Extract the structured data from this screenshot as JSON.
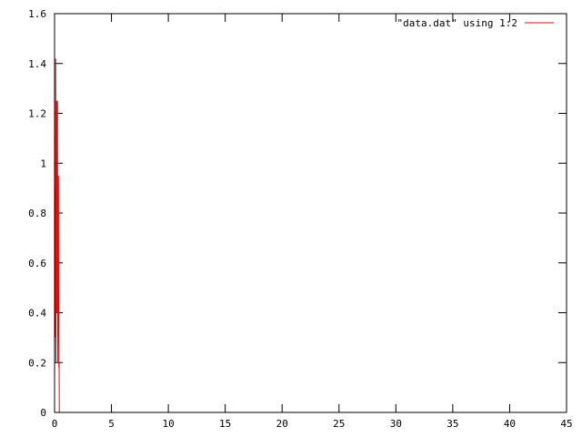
{
  "chart_data": {
    "type": "line",
    "title": "",
    "xlabel": "",
    "ylabel": "",
    "xlim": [
      0,
      45
    ],
    "ylim": [
      0,
      1.6
    ],
    "x_ticks": [
      0,
      5,
      10,
      15,
      20,
      25,
      30,
      35,
      40,
      45
    ],
    "x_tick_labels": [
      "0",
      "5",
      "10",
      "15",
      "20",
      "25",
      "30",
      "35",
      "40",
      "45"
    ],
    "y_ticks": [
      0,
      0.2,
      0.4,
      0.6,
      0.8,
      1,
      1.2,
      1.4,
      1.6
    ],
    "y_tick_labels": [
      "0",
      "0.2",
      "0.4",
      "0.6",
      "0.8",
      "1",
      "1.2",
      "1.4",
      "1.6"
    ],
    "grid": false,
    "legend_position": "top-right",
    "series": [
      {
        "name": "\"data.dat\" using 1:2",
        "color": "#ff0000",
        "x": [
          0.0,
          0.02,
          0.04,
          0.06,
          0.08,
          0.1,
          0.12,
          0.14,
          0.16,
          0.18,
          0.2,
          0.22,
          0.24,
          0.26,
          0.28,
          0.3,
          0.32,
          0.34,
          0.36,
          0.38,
          0.4,
          0.42,
          0.44
        ],
        "y": [
          0.14,
          0.54,
          0.3,
          0.9,
          0.7,
          1.42,
          0.2,
          1.05,
          0.56,
          1.25,
          0.4,
          0.88,
          0.55,
          1.25,
          0.2,
          0.7,
          0.53,
          0.95,
          0.45,
          0.18,
          0.2,
          0.0,
          0.0
        ]
      }
    ]
  }
}
